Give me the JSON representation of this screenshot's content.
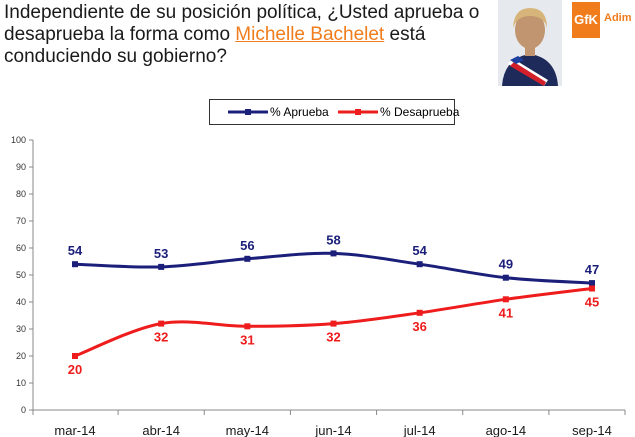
{
  "header": {
    "title_prefix": "Independiente de su posición política, ¿Usted aprueba o desaprueba la forma como ",
    "title_name": "Michelle Bachelet",
    "title_suffix": " está conduciendo su gobierno?"
  },
  "logo": {
    "mark": "GfK",
    "text": "Adim"
  },
  "colors": {
    "approve": "#1b1f7a",
    "disapprove": "#ee1c1c",
    "accent": "#f07c1c"
  },
  "chart_data": {
    "type": "line",
    "categories": [
      "mar-14",
      "abr-14",
      "may-14",
      "jun-14",
      "jul-14",
      "ago-14",
      "sep-14"
    ],
    "series": [
      {
        "name": "% Aprueba",
        "values": [
          54,
          53,
          56,
          58,
          54,
          49,
          47
        ],
        "color": "#1b1f7a"
      },
      {
        "name": "% Desaprueba",
        "values": [
          20,
          32,
          31,
          32,
          36,
          41,
          45
        ],
        "color": "#ee1c1c"
      }
    ],
    "ylim": [
      0,
      100
    ],
    "yticks": [
      0,
      10,
      20,
      30,
      40,
      50,
      60,
      70,
      80,
      90,
      100
    ],
    "grid": false,
    "legend_position": "top-center"
  }
}
